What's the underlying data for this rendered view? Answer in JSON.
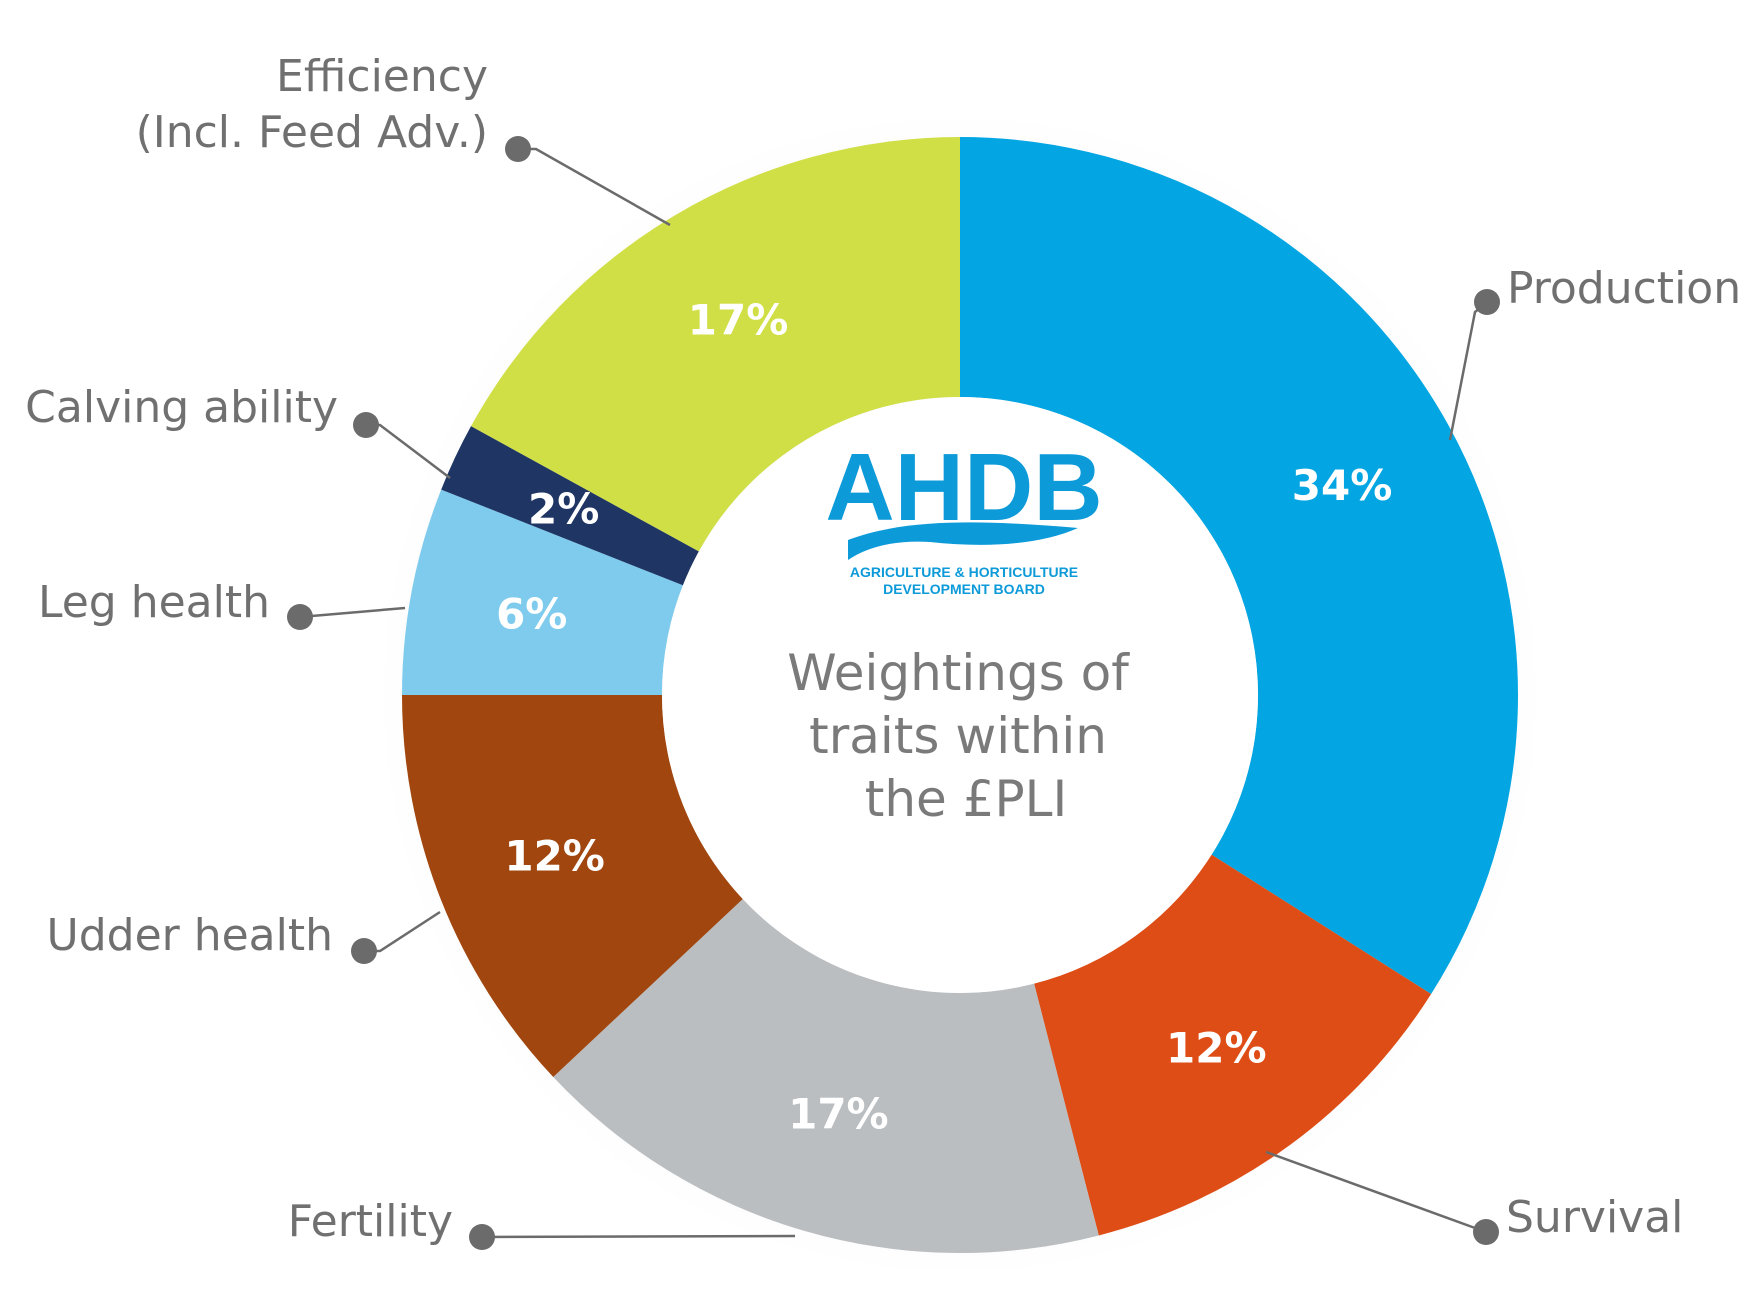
{
  "chart_data": {
    "type": "pie",
    "donut": true,
    "center_title": [
      "Weightings of",
      "traits within",
      "the £PLI"
    ],
    "logo": {
      "word": "AHDB",
      "sub1": "AGRICULTURE & HORTICULTURE",
      "sub2": "DEVELOPMENT BOARD",
      "color": "#0d9ad8"
    },
    "slices": [
      {
        "label": "Production",
        "value": 34,
        "value_label": "34%",
        "color": "#03a6e2"
      },
      {
        "label": "Survival",
        "value": 12,
        "value_label": "12%",
        "color": "#de4d15"
      },
      {
        "label": "Fertility",
        "value": 17,
        "value_label": "17%",
        "color": "#babec1"
      },
      {
        "label": "Udder health",
        "value": 12,
        "value_label": "12%",
        "color": "#a0460e"
      },
      {
        "label": "Leg health",
        "value": 6,
        "value_label": "6%",
        "color": "#7fcbee"
      },
      {
        "label": "Calving ability",
        "value": 2,
        "value_label": "2%",
        "color": "#1f3664"
      },
      {
        "label": [
          "Efficiency",
          "(Incl. Feed Adv.)"
        ],
        "value": 17,
        "value_label": "17%",
        "color": "#d1df47"
      }
    ],
    "label_color": "#707070",
    "leader_color": "#6b6b6b"
  }
}
